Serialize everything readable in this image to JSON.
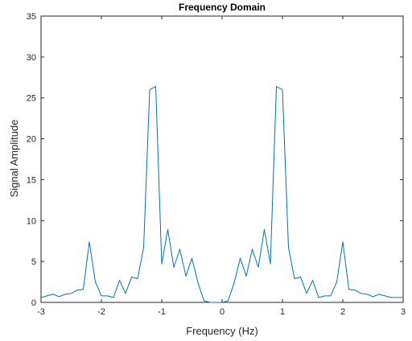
{
  "chart_data": {
    "type": "line",
    "title": "Frequency Domain",
    "xlabel": "Frequency (Hz)",
    "ylabel": "Signal Amplitude",
    "xlim": [
      -3,
      3
    ],
    "ylim": [
      0,
      35
    ],
    "xticks": [
      "-3",
      "-2",
      "-1",
      "0",
      "1",
      "2",
      "3"
    ],
    "yticks": [
      "0",
      "5",
      "10",
      "15",
      "20",
      "25",
      "30",
      "35"
    ],
    "grid": false,
    "legend": "none",
    "series": [
      {
        "color": "#0072BD",
        "x": [
          -3.0,
          -2.9,
          -2.8,
          -2.7,
          -2.6,
          -2.5,
          -2.4,
          -2.3,
          -2.2,
          -2.1,
          -2.0,
          -1.9,
          -1.8,
          -1.7,
          -1.6,
          -1.5,
          -1.4,
          -1.3,
          -1.2,
          -1.1,
          -1.0,
          -0.9,
          -0.8,
          -0.7,
          -0.6,
          -0.5,
          -0.4,
          -0.3,
          -0.2,
          -0.1,
          0.0,
          0.1,
          0.2,
          0.3,
          0.4,
          0.5,
          0.6,
          0.7,
          0.8,
          0.9,
          1.0,
          1.1,
          1.2,
          1.3,
          1.4,
          1.5,
          1.6,
          1.7,
          1.8,
          1.9,
          2.0,
          2.1,
          2.2,
          2.3,
          2.4,
          2.5,
          2.6,
          2.7,
          2.8,
          2.9,
          3.0
        ],
        "y": [
          0.6,
          0.8,
          1.0,
          0.7,
          1.0,
          1.1,
          1.5,
          1.6,
          7.4,
          2.5,
          0.8,
          0.8,
          0.6,
          2.7,
          1.1,
          3.1,
          2.9,
          6.7,
          26.0,
          26.4,
          4.7,
          8.9,
          4.3,
          6.5,
          3.2,
          5.4,
          2.4,
          0.2,
          0.0,
          0.0,
          0.0,
          0.2,
          2.4,
          5.4,
          3.2,
          6.5,
          4.3,
          8.9,
          4.7,
          26.4,
          26.0,
          6.7,
          2.9,
          3.1,
          1.1,
          2.7,
          0.6,
          0.8,
          0.8,
          2.5,
          7.4,
          1.6,
          1.5,
          1.1,
          1.0,
          0.7,
          1.0,
          0.8,
          0.6,
          0.6,
          0.6
        ]
      }
    ]
  }
}
